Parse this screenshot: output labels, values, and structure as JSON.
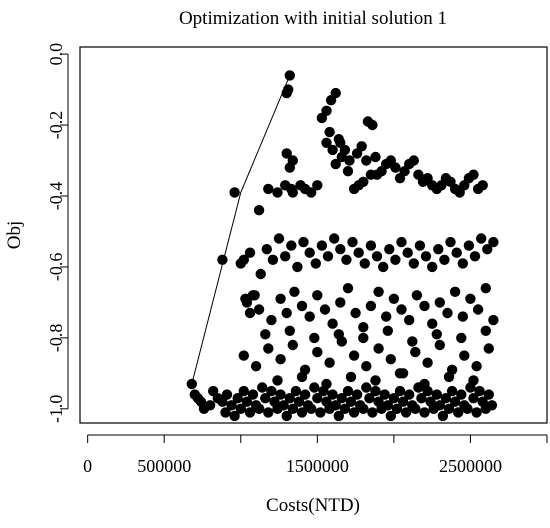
{
  "chart_data": {
    "type": "scatter",
    "title": "Optimization with initial solution 1",
    "xlabel": "Costs(NTD)",
    "ylabel": "Obj",
    "xlim": [
      -50000,
      3000000
    ],
    "ylim": [
      -1.04,
      0.02
    ],
    "x_ticks": [
      0,
      500000,
      1000000,
      1500000,
      2000000,
      2500000,
      3000000
    ],
    "x_tick_labels": [
      "0",
      "500000",
      "",
      "1500000",
      "",
      "2500000",
      ""
    ],
    "y_ticks": [
      0.0,
      -0.2,
      -0.4,
      -0.6,
      -0.8,
      -1.0
    ],
    "y_tick_labels": [
      "0.0",
      "-0.2",
      "-0.4",
      "-0.6",
      "-0.8",
      "-1.0"
    ],
    "grid": false,
    "point_color": "#000000",
    "frontier_line": {
      "x": [
        680000,
        1000000,
        1320000
      ],
      "y": [
        -0.93,
        -0.39,
        -0.06
      ]
    },
    "points": {
      "x": [
        680000,
        700000,
        720000,
        740000,
        760000,
        800000,
        820000,
        850000,
        880000,
        900000,
        910000,
        940000,
        960000,
        980000,
        1000000,
        1020000,
        1040000,
        1060000,
        1080000,
        1100000,
        1120000,
        1140000,
        1160000,
        1180000,
        1200000,
        1220000,
        1240000,
        1260000,
        1280000,
        1300000,
        1320000,
        1340000,
        1360000,
        1380000,
        1400000,
        1420000,
        1440000,
        1460000,
        1480000,
        1500000,
        1520000,
        1540000,
        1560000,
        1580000,
        1600000,
        1620000,
        1640000,
        1660000,
        1680000,
        1700000,
        1720000,
        1740000,
        1760000,
        1780000,
        1800000,
        1820000,
        1840000,
        1860000,
        1880000,
        1900000,
        1920000,
        1940000,
        1960000,
        1980000,
        2000000,
        2020000,
        2040000,
        2060000,
        2080000,
        2100000,
        2120000,
        2140000,
        2160000,
        2180000,
        2200000,
        2220000,
        2240000,
        2260000,
        2280000,
        2300000,
        2320000,
        2340000,
        2360000,
        2380000,
        2400000,
        2420000,
        2440000,
        2460000,
        2480000,
        2500000,
        2520000,
        2540000,
        2560000,
        2580000,
        2600000,
        2620000,
        2640000,
        880000,
        960000,
        1020000,
        1060000,
        1120000,
        1180000,
        1240000,
        1290000,
        1300000,
        1310000,
        1320000,
        1330000,
        1340000,
        1390000,
        1420000,
        1460000,
        1500000,
        1530000,
        1560000,
        1590000,
        1620000,
        1650000,
        1680000,
        1710000,
        1740000,
        1770000,
        1800000,
        1830000,
        1860000,
        1890000,
        1920000,
        1950000,
        1980000,
        2010000,
        2040000,
        2070000,
        2100000,
        2130000,
        2160000,
        2190000,
        2220000,
        2250000,
        2280000,
        2310000,
        2340000,
        2370000,
        2400000,
        2430000,
        2460000,
        2490000,
        2520000,
        2550000,
        2580000,
        1000000,
        1030000,
        1060000,
        1090000,
        1130000,
        1170000,
        1210000,
        1250000,
        1290000,
        1330000,
        1370000,
        1410000,
        1450000,
        1490000,
        1530000,
        1570000,
        1610000,
        1650000,
        1690000,
        1730000,
        1770000,
        1810000,
        1850000,
        1890000,
        1930000,
        1970000,
        2010000,
        2050000,
        2090000,
        2130000,
        2170000,
        2210000,
        2250000,
        2290000,
        2330000,
        2370000,
        2410000,
        2450000,
        2490000,
        2530000,
        2570000,
        2610000,
        2650000,
        1300000,
        1320000,
        1340000,
        1560000,
        1580000,
        1600000,
        1620000,
        1640000,
        1660000,
        1700000,
        1760000,
        1790000,
        1820000,
        1850000,
        1880000,
        1040000,
        1080000,
        1120000,
        1200000,
        1260000,
        1300000,
        1350000,
        1400000,
        1450000,
        1500000,
        1550000,
        1600000,
        1650000,
        1700000,
        1750000,
        1800000,
        1850000,
        1900000,
        1950000,
        2000000,
        2050000,
        2100000,
        2150000,
        2200000,
        2250000,
        2300000,
        2350000,
        2400000,
        2450000,
        2500000,
        2550000,
        2600000,
        2650000,
        1020000,
        1100000,
        1180000,
        1260000,
        1340000,
        1420000,
        1500000,
        1580000,
        1660000,
        1740000,
        1820000,
        1900000,
        1980000,
        2060000,
        2140000,
        2220000,
        2300000,
        2380000,
        2460000,
        2540000,
        2620000,
        1160000,
        1240000,
        1320000,
        1400000,
        1480000,
        1560000,
        1640000,
        1720000,
        1800000,
        1880000,
        1960000,
        2040000,
        2120000,
        2200000,
        2280000,
        2360000,
        2440000,
        2520000,
        2600000
      ],
      "y": [
        -0.93,
        -0.96,
        -0.97,
        -0.98,
        -1.0,
        -0.99,
        -0.95,
        -0.97,
        -0.98,
        -1.01,
        -0.96,
        -0.99,
        -1.02,
        -0.97,
        -1.0,
        -0.95,
        -0.98,
        -1.01,
        -0.96,
        -0.99,
        -1.0,
        -0.94,
        -0.97,
        -1.01,
        -0.95,
        -0.98,
        -1.0,
        -0.96,
        -0.99,
        -1.02,
        -0.97,
        -1.0,
        -0.95,
        -0.98,
        -1.01,
        -0.96,
        -0.99,
        -1.0,
        -0.94,
        -0.97,
        -1.01,
        -0.95,
        -0.98,
        -1.0,
        -0.96,
        -0.99,
        -1.02,
        -0.97,
        -1.0,
        -0.95,
        -0.98,
        -1.01,
        -0.96,
        -0.99,
        -1.0,
        -0.94,
        -0.97,
        -1.01,
        -0.95,
        -0.98,
        -1.0,
        -0.96,
        -0.99,
        -1.02,
        -0.97,
        -1.0,
        -0.95,
        -0.98,
        -1.01,
        -0.96,
        -0.99,
        -1.0,
        -0.94,
        -0.97,
        -1.01,
        -0.95,
        -0.98,
        -1.0,
        -0.96,
        -0.99,
        -1.02,
        -0.97,
        -1.0,
        -0.95,
        -0.98,
        -1.01,
        -0.96,
        -0.99,
        -1.0,
        -0.94,
        -0.97,
        -1.01,
        -0.95,
        -0.98,
        -1.0,
        -0.96,
        -0.99,
        -0.58,
        -0.39,
        -0.58,
        -0.56,
        -0.44,
        -0.38,
        -0.39,
        -0.37,
        -0.11,
        -0.1,
        -0.06,
        -0.38,
        -0.39,
        -0.37,
        -0.38,
        -0.39,
        -0.37,
        -0.18,
        -0.16,
        -0.13,
        -0.11,
        -0.25,
        -0.27,
        -0.3,
        -0.38,
        -0.37,
        -0.36,
        -0.19,
        -0.2,
        -0.34,
        -0.33,
        -0.31,
        -0.3,
        -0.32,
        -0.35,
        -0.33,
        -0.31,
        -0.3,
        -0.34,
        -0.36,
        -0.35,
        -0.37,
        -0.38,
        -0.37,
        -0.35,
        -0.36,
        -0.38,
        -0.39,
        -0.37,
        -0.35,
        -0.34,
        -0.38,
        -0.37,
        -0.59,
        -0.69,
        -0.73,
        -0.68,
        -0.62,
        -0.55,
        -0.58,
        -0.52,
        -0.57,
        -0.54,
        -0.6,
        -0.53,
        -0.56,
        -0.59,
        -0.54,
        -0.57,
        -0.52,
        -0.55,
        -0.58,
        -0.53,
        -0.56,
        -0.59,
        -0.54,
        -0.57,
        -0.6,
        -0.55,
        -0.58,
        -0.53,
        -0.56,
        -0.59,
        -0.54,
        -0.57,
        -0.6,
        -0.55,
        -0.58,
        -0.53,
        -0.56,
        -0.59,
        -0.54,
        -0.57,
        -0.52,
        -0.55,
        -0.53,
        -0.28,
        -0.32,
        -0.3,
        -0.25,
        -0.22,
        -0.27,
        -0.31,
        -0.24,
        -0.29,
        -0.33,
        -0.28,
        -0.26,
        -0.3,
        -0.34,
        -0.29,
        -0.7,
        -0.68,
        -0.72,
        -0.75,
        -0.69,
        -0.73,
        -0.67,
        -0.71,
        -0.74,
        -0.68,
        -0.72,
        -0.76,
        -0.7,
        -0.66,
        -0.73,
        -0.77,
        -0.71,
        -0.67,
        -0.74,
        -0.69,
        -0.72,
        -0.75,
        -0.68,
        -0.71,
        -0.76,
        -0.7,
        -0.73,
        -0.67,
        -0.74,
        -0.69,
        -0.72,
        -0.66,
        -0.75,
        -0.85,
        -0.88,
        -0.83,
        -0.86,
        -0.82,
        -0.89,
        -0.84,
        -0.87,
        -0.81,
        -0.85,
        -0.88,
        -0.83,
        -0.86,
        -0.9,
        -0.84,
        -0.87,
        -0.82,
        -0.89,
        -0.85,
        -0.88,
        -0.83,
        -0.79,
        -0.92,
        -0.78,
        -0.91,
        -0.8,
        -0.93,
        -0.79,
        -0.91,
        -0.8,
        -0.92,
        -0.78,
        -0.9,
        -0.81,
        -0.93,
        -0.79,
        -0.91,
        -0.8,
        -0.92,
        -0.78
      ]
    }
  }
}
